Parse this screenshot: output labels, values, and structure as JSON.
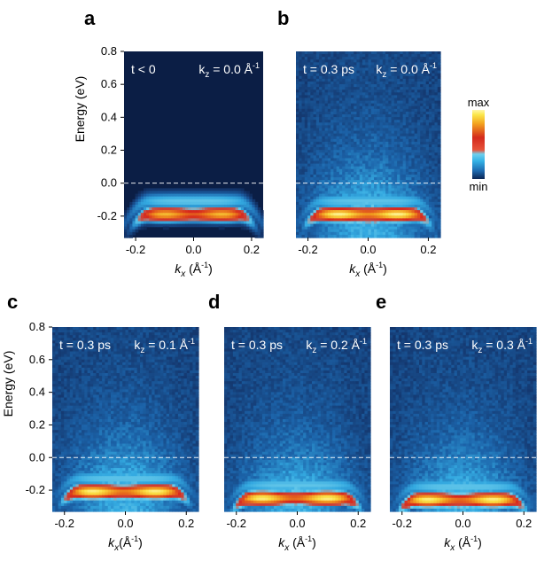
{
  "chart_data": [
    {
      "id": "a",
      "type": "heatmap",
      "panel_label": "a",
      "time_label": "t < 0",
      "kz_label_main": "k",
      "kz_label_sub": "z",
      "kz_label_rest": " = 0.0 Å",
      "kz_label_sup": "-1",
      "kz": 0.0,
      "pumped": false,
      "xlabel_main": "k",
      "xlabel_sub": "x",
      "xlabel_rest": " (Å",
      "xlabel_sup": "-1",
      "xlabel_close": ")",
      "ylabel": "Energy (eV)",
      "xlim": [
        -0.24,
        0.24
      ],
      "ylim": [
        -0.33,
        0.8
      ],
      "xticks": [
        "-0.2",
        "0.0",
        "0.2"
      ],
      "xtick_values": [
        -0.2,
        0.0,
        0.2
      ],
      "yticks": [
        "-0.2",
        "0.0",
        "0.2",
        "0.4",
        "0.6",
        "0.8"
      ],
      "ytick_values": [
        -0.2,
        0.0,
        0.2,
        0.4,
        0.6,
        0.8
      ],
      "band_lobes": [
        -0.1,
        0.1
      ],
      "band_energy_top": -0.17,
      "fermi_level": 0.0
    },
    {
      "id": "b",
      "type": "heatmap",
      "panel_label": "b",
      "time_label": "t = 0.3 ps",
      "kz_label_main": "k",
      "kz_label_sub": "z",
      "kz_label_rest": " = 0.0 Å",
      "kz_label_sup": "-1",
      "kz": 0.0,
      "pumped": true,
      "xlabel_main": "k",
      "xlabel_sub": "x",
      "xlabel_rest": " (Å",
      "xlabel_sup": "-1",
      "xlabel_close": ")",
      "ylabel": "",
      "xlim": [
        -0.24,
        0.24
      ],
      "ylim": [
        -0.33,
        0.8
      ],
      "xticks": [
        "-0.2",
        "0.0",
        "0.2"
      ],
      "xtick_values": [
        -0.2,
        0.0,
        0.2
      ],
      "yticks": [],
      "ytick_values": [],
      "band_lobes": [
        -0.1,
        0.1
      ],
      "band_energy_top": -0.17,
      "fermi_level": 0.0
    },
    {
      "id": "c",
      "type": "heatmap",
      "panel_label": "c",
      "time_label": "t = 0.3 ps",
      "kz_label_main": "k",
      "kz_label_sub": "z",
      "kz_label_rest": " = 0.1 Å",
      "kz_label_sup": "-1",
      "kz": 0.1,
      "pumped": true,
      "xlabel_main": "k",
      "xlabel_sub": "x",
      "xlabel_rest": "(Å",
      "xlabel_sup": "-1",
      "xlabel_close": ")",
      "ylabel": "Energy (eV)",
      "xlim": [
        -0.24,
        0.24
      ],
      "ylim": [
        -0.33,
        0.8
      ],
      "xticks": [
        "-0.2",
        "0.0",
        "0.2"
      ],
      "xtick_values": [
        -0.2,
        0.0,
        0.2
      ],
      "yticks": [
        "-0.2",
        "0.0",
        "0.2",
        "0.4",
        "0.6",
        "0.8"
      ],
      "ytick_values": [
        -0.2,
        0.0,
        0.2,
        0.4,
        0.6,
        0.8
      ],
      "band_lobes": [
        -0.11,
        0.1
      ],
      "band_energy_top": -0.19,
      "fermi_level": 0.0
    },
    {
      "id": "d",
      "type": "heatmap",
      "panel_label": "d",
      "time_label": "t = 0.3 ps",
      "kz_label_main": "k",
      "kz_label_sub": "z",
      "kz_label_rest": " = 0.2 Å",
      "kz_label_sup": "-1",
      "kz": 0.2,
      "pumped": true,
      "xlabel_main": "k",
      "xlabel_sub": "x",
      "xlabel_rest": " (Å",
      "xlabel_sup": "-1",
      "xlabel_close": ")",
      "ylabel": "",
      "xlim": [
        -0.24,
        0.24
      ],
      "ylim": [
        -0.33,
        0.8
      ],
      "xticks": [
        "-0.2",
        "0.0",
        "0.2"
      ],
      "xtick_values": [
        -0.2,
        0.0,
        0.2
      ],
      "yticks": [],
      "ytick_values": [],
      "band_lobes": [
        -0.12,
        0.1
      ],
      "band_energy_top": -0.23,
      "fermi_level": 0.0
    },
    {
      "id": "e",
      "type": "heatmap",
      "panel_label": "e",
      "time_label": "t = 0.3 ps",
      "kz_label_main": "k",
      "kz_label_sub": "z",
      "kz_label_rest": " = 0.3 Å",
      "kz_label_sup": "-1",
      "kz": 0.3,
      "pumped": true,
      "xlabel_main": "k",
      "xlabel_sub": "x",
      "xlabel_rest": " (Å",
      "xlabel_sup": "-1",
      "xlabel_close": ")",
      "ylabel": "",
      "xlim": [
        -0.24,
        0.24
      ],
      "ylim": [
        -0.33,
        0.8
      ],
      "xticks": [
        "-0.2",
        "0.0",
        "0.2"
      ],
      "xtick_values": [
        -0.2,
        0.0,
        0.2
      ],
      "yticks": [],
      "ytick_values": [],
      "band_lobes": [
        -0.12,
        0.1
      ],
      "band_energy_top": -0.24,
      "fermi_level": 0.0
    }
  ],
  "colorbar": {
    "max_label": "max",
    "min_label": "min",
    "colors": [
      "#0b2554",
      "#1e6ab0",
      "#34b2e6",
      "#6fd0ee",
      "#e6533a",
      "#d42a1c",
      "#f3a21e",
      "#fbe74a",
      "#fff6a8"
    ]
  },
  "colors": {
    "background": "#0b1e45",
    "fermi_line": "#ffffff",
    "text": "#000000"
  }
}
